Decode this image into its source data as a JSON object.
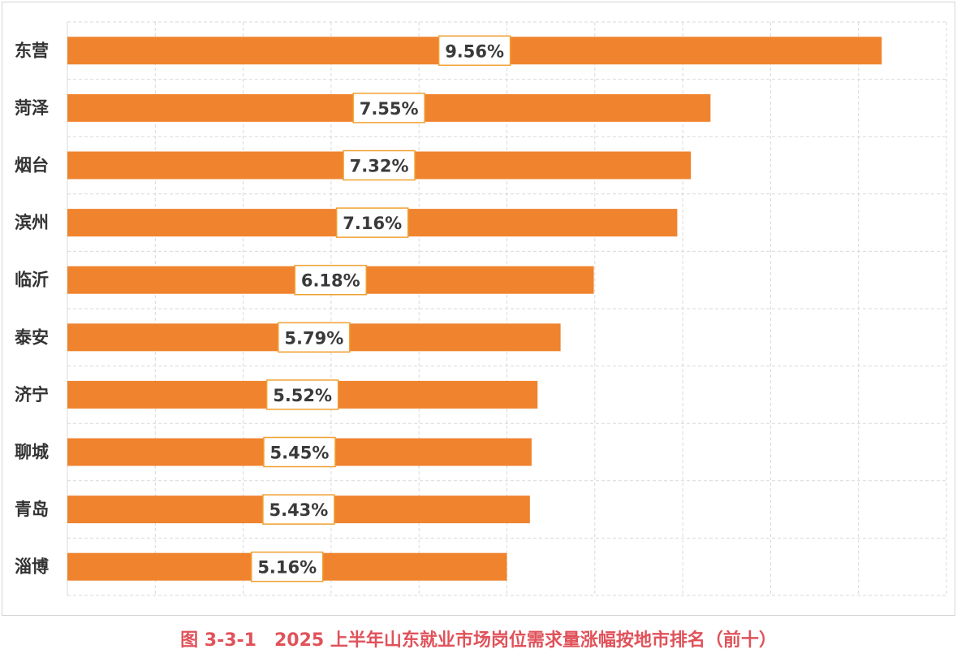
{
  "chart_data": {
    "type": "bar",
    "orientation": "horizontal",
    "categories": [
      "东营",
      "菏泽",
      "烟台",
      "滨州",
      "临沂",
      "泰安",
      "济宁",
      "聊城",
      "青岛",
      "淄博"
    ],
    "values": [
      9.56,
      7.55,
      7.32,
      7.16,
      6.18,
      5.79,
      5.52,
      5.45,
      5.43,
      5.16
    ],
    "value_labels": [
      "9.56%",
      "7.55%",
      "7.32%",
      "7.16%",
      "6.18%",
      "5.79%",
      "5.52%",
      "5.45%",
      "5.43%",
      "5.16%"
    ],
    "xlim": [
      0,
      10.32
    ],
    "grid": true,
    "bar_color": "#f0832d",
    "label_border_color": "#f0a030"
  },
  "caption": "图 3-3-1　2025 上半年山东就业市场岗位需求量涨幅按地市排名（前十）",
  "caption_color": "#e0525a"
}
